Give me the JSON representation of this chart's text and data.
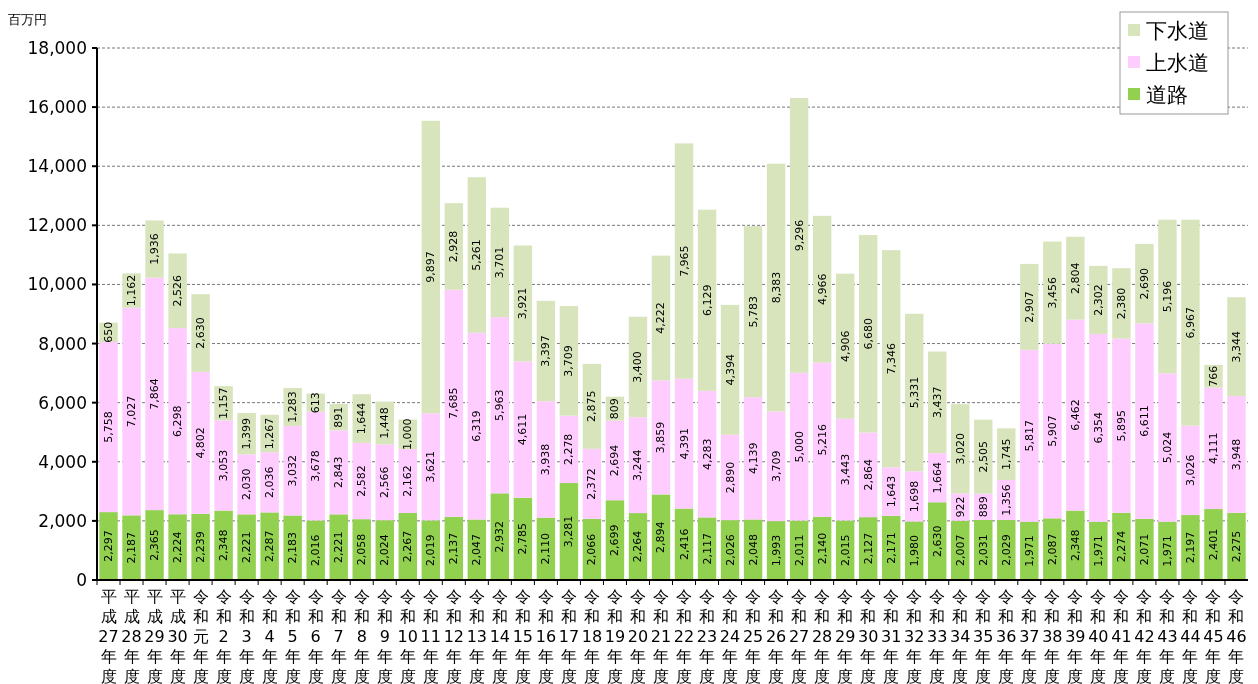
{
  "chart_data": {
    "type": "bar",
    "stacked": true,
    "ylabel": "百万円",
    "categories": [
      "平成27年度",
      "平成28年度",
      "平成29年度",
      "平成30年度",
      "令和元年度",
      "令和2年度",
      "令和3年度",
      "令和4年度",
      "令和5年度",
      "令和6年度",
      "令和7年度",
      "令和8年度",
      "令和9年度",
      "令和10年度",
      "令和11年度",
      "令和12年度",
      "令和13年度",
      "令和14年度",
      "令和15年度",
      "令和16年度",
      "令和17年度",
      "令和18年度",
      "令和19年度",
      "令和20年度",
      "令和21年度",
      "令和22年度",
      "令和23年度",
      "令和24年度",
      "令和25年度",
      "令和26年度",
      "令和27年度",
      "令和28年度",
      "令和29年度",
      "令和30年度",
      "令和31年度",
      "令和32年度",
      "令和33年度",
      "令和34年度",
      "令和35年度",
      "令和36年度",
      "令和37年度",
      "令和38年度",
      "令和39年度",
      "令和40年度",
      "令和41年度",
      "令和42年度",
      "令和43年度",
      "令和44年度",
      "令和45年度",
      "令和46年度"
    ],
    "series": [
      {
        "name": "道路",
        "color": "#92d050",
        "values": [
          2297,
          2187,
          2365,
          2224,
          2239,
          2348,
          2221,
          2287,
          2183,
          2016,
          2221,
          2058,
          2024,
          2267,
          2019,
          2137,
          2047,
          2932,
          2785,
          2110,
          3281,
          2066,
          2699,
          2264,
          2894,
          2416,
          2117,
          2026,
          2048,
          1993,
          2011,
          2140,
          2015,
          2127,
          2171,
          1980,
          2630,
          2007,
          2031,
          2029,
          1971,
          2087,
          2348,
          1971,
          2274,
          2071,
          1971,
          2197,
          2401,
          2275
        ],
        "value_labels": [
          "2,297",
          "2,187",
          "2,365",
          "2,224",
          "2,239",
          "2,348",
          "2,221",
          "2,287",
          "2,183",
          "2,016",
          "2,221",
          "2,058",
          "2,024",
          "2,267",
          "2,019",
          "2,137",
          "2,047",
          "2,932",
          "2,785",
          "2,110",
          "3,281",
          "2,066",
          "2,699",
          "2,264",
          "2,894",
          "2,416",
          "2,117",
          "2,026",
          "2,048",
          "1,993",
          "2,011",
          "2,140",
          "2,015",
          "2,127",
          "2,171",
          "1,980",
          "2,630",
          "2,007",
          "2,031",
          "2,029",
          "1,971",
          "2,087",
          "2,348",
          "1,971",
          "2,274",
          "2,071",
          "1,971",
          "2,197",
          "2,401",
          "2,275"
        ]
      },
      {
        "name": "上水道",
        "color": "#ffccff",
        "values": [
          5758,
          7027,
          7864,
          6298,
          4802,
          3053,
          2030,
          2036,
          3032,
          3678,
          2843,
          2582,
          2566,
          2162,
          3621,
          7685,
          6319,
          5963,
          4611,
          3938,
          2278,
          2372,
          2694,
          3244,
          3859,
          4391,
          4283,
          2890,
          4139,
          3709,
          5000,
          5216,
          3443,
          2864,
          1643,
          1698,
          1664,
          922,
          889,
          1356,
          5817,
          5907,
          6462,
          6354,
          5895,
          6611,
          5024,
          3026,
          4111,
          3948
        ],
        "value_labels": [
          "5,758",
          "7,027",
          "7,864",
          "6,298",
          "4,802",
          "3,053",
          "2,030",
          "2,036",
          "3,032",
          "3,678",
          "2,843",
          "2,582",
          "2,566",
          "2,162",
          "3,621",
          "7,685",
          "6,319",
          "5,963",
          "4,611",
          "3,938",
          "2,278",
          "2,372",
          "2,694",
          "3,244",
          "3,859",
          "4,391",
          "4,283",
          "2,890",
          "4,139",
          "3,709",
          "5,000",
          "5,216",
          "3,443",
          "2,864",
          "1,643",
          "1,698",
          "1,664",
          "922",
          "889",
          "1,356",
          "5,817",
          "5,907",
          "6,462",
          "6,354",
          "5,895",
          "6,611",
          "5,024",
          "3,026",
          "4,111",
          "3,948"
        ]
      },
      {
        "name": "下水道",
        "color": "#d8e4bc",
        "values": [
          650,
          1162,
          1936,
          2526,
          2630,
          1157,
          1399,
          1267,
          1283,
          613,
          891,
          1644,
          1448,
          1000,
          9897,
          2928,
          5261,
          3701,
          3921,
          3397,
          3709,
          2875,
          809,
          3400,
          4222,
          7965,
          6129,
          4394,
          5783,
          8383,
          9296,
          4966,
          4906,
          6680,
          7346,
          5331,
          3437,
          3020,
          2505,
          1745,
          2907,
          3456,
          2804,
          2302,
          2380,
          2690,
          5196,
          6967,
          766,
          3344
        ],
        "value_labels": [
          "650",
          "1,162",
          "1,936",
          "2,526",
          "2,630",
          "1,157",
          "1,399",
          "1,267",
          "1,283",
          "613",
          "891",
          "1,644",
          "1,448",
          "1,000",
          "9,897",
          "2,928",
          "5,261",
          "3,701",
          "3,921",
          "3,397",
          "3,709",
          "2,875",
          "809",
          "3,400",
          "4,222",
          "7,965",
          "6,129",
          "4,394",
          "5,783",
          "8,383",
          "9,296",
          "4,966",
          "4,906",
          "6,680",
          "7,346",
          "5,331",
          "3,437",
          "3,020",
          "2,505",
          "1,745",
          "2,907",
          "3,456",
          "2,804",
          "2,302",
          "2,380",
          "2,690",
          "5,196",
          "6,967",
          "766",
          "3,344"
        ]
      }
    ],
    "ylim": [
      0,
      18000
    ],
    "yticks": [
      {
        "value": 0,
        "label": "0"
      },
      {
        "value": 2000,
        "label": "2,000"
      },
      {
        "value": 4000,
        "label": "4,000"
      },
      {
        "value": 6000,
        "label": "6,000"
      },
      {
        "value": 8000,
        "label": "8,000"
      },
      {
        "value": 10000,
        "label": "10,000"
      },
      {
        "value": 12000,
        "label": "12,000"
      },
      {
        "value": 14000,
        "label": "14,000"
      },
      {
        "value": 16000,
        "label": "16,000"
      },
      {
        "value": 18000,
        "label": "18,000"
      }
    ],
    "grid": "y",
    "legend": "top right"
  }
}
